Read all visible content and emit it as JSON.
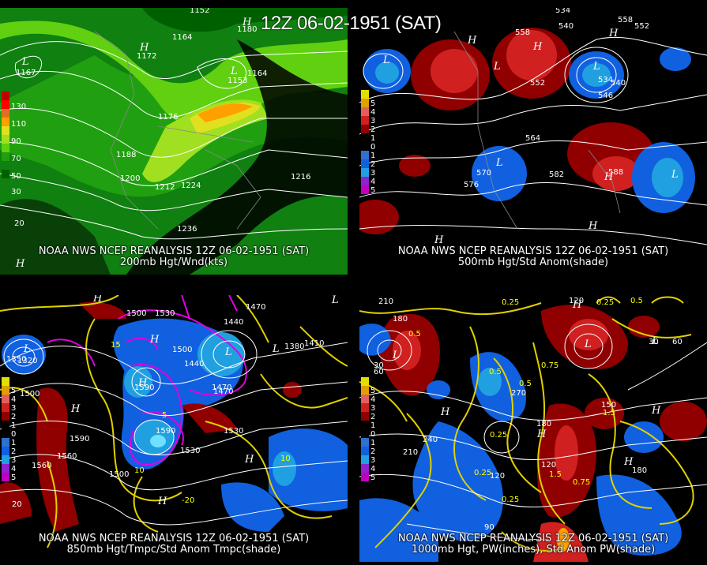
{
  "header": {
    "title": "12Z 06-02-1951 (SAT)"
  },
  "panels": [
    {
      "id": "p1",
      "caption1": "NOAA NWS NCEP REANALYSIS 12Z 06-02-1951 (SAT)",
      "caption2": "200mb Hgt/Wnd(kts)",
      "legend": [
        "130",
        "110",
        "90",
        "70",
        "50",
        "30"
      ],
      "legend_colors": [
        "#c00000",
        "#ff0000",
        "#e07020",
        "#ffa000",
        "#e0e020",
        "#a0e020",
        "#60d010",
        "#20a010",
        "#108010",
        "#006000"
      ],
      "contours": [
        "1152",
        "1164",
        "1176",
        "1188",
        "1200",
        "1212",
        "1224",
        "1236",
        "1164",
        "1167",
        "1172",
        "1180",
        "1153",
        "1216"
      ],
      "centers": [
        "H",
        "L",
        "H",
        "L",
        "H"
      ]
    },
    {
      "id": "p2",
      "caption1": "NOAA NWS NCEP REANALYSIS 12Z 06-02-1951 (SAT)",
      "caption2": "500mb Hgt/Std Anom(shade)",
      "legend": [
        "5",
        "4",
        "3",
        "2",
        "1",
        "0",
        "1",
        "2",
        "3",
        "4",
        "5"
      ],
      "legend_colors": [
        "#e0e000",
        "#e0a000",
        "#e06060",
        "#d02020",
        "#900000",
        "#000000",
        "#000000",
        "#3070d0",
        "#1060e0",
        "#20a0e0",
        "#9020d0",
        "#c000c0"
      ],
      "contours": [
        "534",
        "540",
        "558",
        "552",
        "552",
        "564",
        "570",
        "576",
        "582",
        "588",
        "546",
        "534",
        "540",
        "558",
        "556",
        "564",
        "529",
        "562",
        "582",
        "576",
        "586",
        "540",
        "587",
        "588"
      ],
      "centers": [
        "H",
        "L",
        "H",
        "L",
        "L",
        "H",
        "L",
        "H",
        "H",
        "L",
        "H"
      ]
    },
    {
      "id": "p3",
      "caption1": "NOAA NWS NCEP REANALYSIS 12Z 06-02-1951 (SAT)",
      "caption2": "850mb Hgt/Tmpc/Std Anom Tmpc(shade)",
      "legend": [
        "5",
        "4",
        "3",
        "2",
        "1",
        "0",
        "1",
        "2",
        "3",
        "4",
        "5"
      ],
      "legend_colors": [
        "#e0e000",
        "#e0a000",
        "#e06060",
        "#d02020",
        "#900000",
        "#000000",
        "#000000",
        "#3070d0",
        "#1060e0",
        "#20a0e0",
        "#9020d0",
        "#c000c0"
      ],
      "contours": [
        "1500",
        "1530",
        "1410",
        "1440",
        "1470",
        "1380",
        "1350",
        "1320",
        "1590",
        "1560",
        "1500",
        "1470",
        "1440",
        "1530",
        "1530",
        "1560",
        "1500",
        "1590",
        "1410",
        "1380",
        "1470",
        "1440",
        "1500",
        "1590",
        "1560",
        "1500",
        "1530",
        "1470"
      ],
      "centers": [
        "H",
        "L",
        "H",
        "L",
        "H",
        "H",
        "L",
        "H",
        "H",
        "L"
      ]
    },
    {
      "id": "p4",
      "caption1": "NOAA NWS NCEP REANALYSIS 12Z 06-02-1951 (SAT)",
      "caption2": "1000mb Hgt, PW(inches), Std Anom PW(shade)",
      "legend": [
        "5",
        "4",
        "3",
        "2",
        "1",
        "0",
        "1",
        "2",
        "3",
        "4",
        "5"
      ],
      "legend_colors": [
        "#e0e000",
        "#e0a000",
        "#e06060",
        "#d02020",
        "#900000",
        "#000000",
        "#000000",
        "#3070d0",
        "#1060e0",
        "#20a0e0",
        "#9020d0",
        "#c000c0"
      ],
      "contours": [
        "210",
        "180",
        "0.25",
        "0.5",
        "30",
        "60",
        "0.5",
        "0.75",
        "120",
        "150",
        "180",
        "0.25",
        "0.5",
        "240",
        "210",
        "270",
        "120",
        "180",
        "0.25",
        "1.5",
        "1.5",
        "180",
        "0.25",
        "0.75",
        "60",
        "30",
        "90",
        "120",
        "0.25",
        "0.5"
      ],
      "centers": [
        "H",
        "L",
        "H",
        "L",
        "H",
        "H",
        "L",
        "H"
      ]
    }
  ]
}
